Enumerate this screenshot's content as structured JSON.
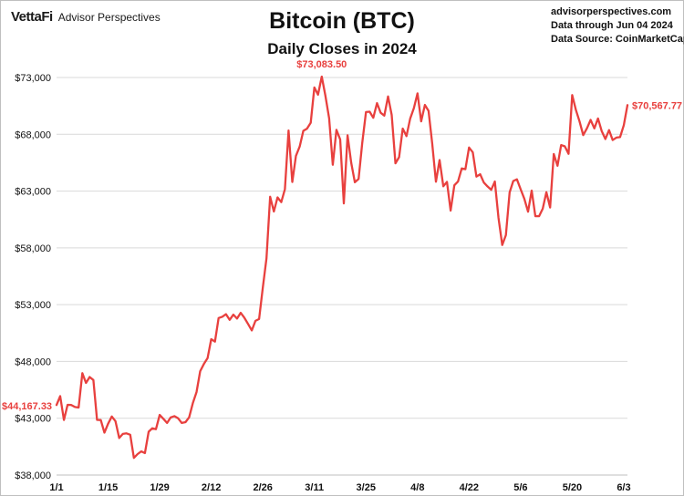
{
  "header": {
    "brand_logo": "VettaFi",
    "brand_name": "Advisor Perspectives",
    "title": "Bitcoin (BTC)",
    "subtitle": "Daily Closes in 2024",
    "source_site": "advisorperspectives.com",
    "data_through": "Data through Jun 04 2024",
    "data_source": "Data Source: CoinMarketCap"
  },
  "chart_data": {
    "type": "line",
    "title": "Bitcoin (BTC)",
    "subtitle": "Daily Closes in 2024",
    "xlabel": "",
    "ylabel": "",
    "xlim": [
      "2024-01-01",
      "2024-06-04"
    ],
    "ylim": [
      38000,
      73000
    ],
    "y_ticks": [
      38000,
      43000,
      48000,
      53000,
      58000,
      63000,
      68000,
      73000
    ],
    "y_tick_labels": [
      "$38,000",
      "$43,000",
      "$48,000",
      "$53,000",
      "$58,000",
      "$63,000",
      "$68,000",
      "$73,000"
    ],
    "x_ticks": [
      "2024-01-01",
      "2024-01-15",
      "2024-01-29",
      "2024-02-12",
      "2024-02-26",
      "2024-03-11",
      "2024-03-25",
      "2024-04-08",
      "2024-04-22",
      "2024-05-06",
      "2024-05-20",
      "2024-06-03"
    ],
    "x_tick_labels": [
      "1/1",
      "1/15",
      "1/29",
      "2/12",
      "2/26",
      "3/11",
      "3/25",
      "4/8",
      "4/22",
      "5/6",
      "5/20",
      "6/3"
    ],
    "grid": "horizontal",
    "color": "#e8403e",
    "annotations": [
      {
        "date": "2024-01-01",
        "value": 44167.33,
        "label": "$44,167.33"
      },
      {
        "date": "2024-03-13",
        "value": 73083.5,
        "label": "$73,083.50"
      },
      {
        "date": "2024-06-04",
        "value": 70567.77,
        "label": "$70,567.77"
      }
    ],
    "series": [
      {
        "start_date": "2024-01-01",
        "values": [
          44167.33,
          44945,
          42848,
          44180,
          44163,
          43989,
          43944,
          46970,
          46105,
          46633,
          46368,
          42853,
          42842,
          41733,
          42511,
          43155,
          42742,
          41262,
          41618,
          41665,
          41545,
          39507,
          39845,
          40077,
          39934,
          41816,
          42120,
          42035,
          43288,
          42952,
          42582,
          43076,
          43185,
          42993,
          42583,
          42658,
          43084,
          44318,
          45302,
          47147,
          47771,
          48293,
          49958,
          49742,
          51826,
          51938,
          52160,
          51663,
          52123,
          51779,
          52284,
          51839,
          51304,
          50731,
          51572,
          51733,
          54522,
          57085,
          62504,
          61198,
          62440,
          62029,
          63167,
          68330,
          63801,
          66106,
          66925,
          68300,
          68498,
          69020,
          72123,
          71482,
          73083.5,
          71397,
          69403,
          65315,
          68390,
          67548,
          61912,
          67914,
          65491,
          63779,
          64062,
          67234,
          69959,
          69987,
          69455,
          70744,
          69893,
          69646,
          71333,
          69702,
          65447,
          65981,
          68508,
          67838,
          69360,
          70300,
          71601,
          69139,
          70587,
          70060,
          67195,
          63821,
          65738,
          63427,
          63811,
          61276,
          63512,
          63843,
          64994,
          64926,
          66837,
          66407,
          64276,
          64482,
          63756,
          63419,
          63113,
          63841,
          60636,
          58254,
          59123,
          62889,
          63892,
          64031,
          63162,
          62334,
          61187,
          63049,
          60793,
          60793,
          61448,
          62901,
          61553,
          66267,
          65231,
          67051,
          66940,
          66278,
          71448,
          70136,
          69122,
          67929,
          68526,
          69265,
          68518,
          69394,
          68296,
          67578,
          68365,
          67491,
          67706,
          67751,
          68805,
          70567.77
        ]
      }
    ]
  }
}
